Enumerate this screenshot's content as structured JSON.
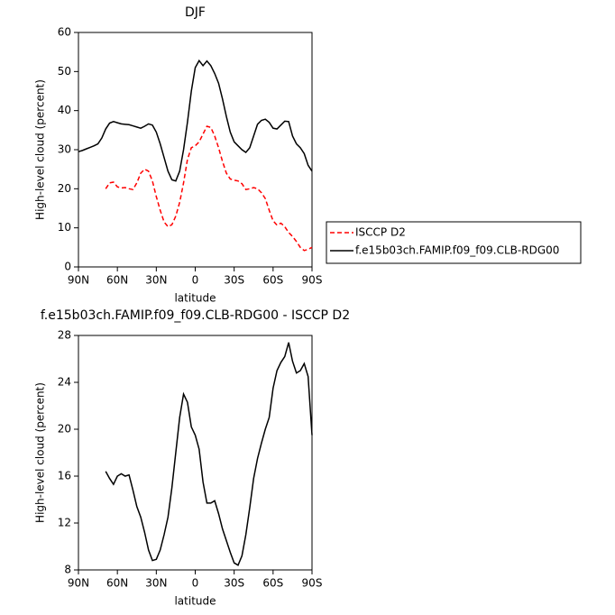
{
  "chart_data": [
    {
      "type": "line",
      "title": "DJF",
      "xlabel": "latitude",
      "ylabel": "High-level cloud (percent)",
      "x": [
        90,
        87,
        84,
        81,
        78,
        75,
        72,
        69,
        66,
        63,
        60,
        57,
        54,
        51,
        48,
        45,
        42,
        39,
        36,
        33,
        30,
        27,
        24,
        21,
        18,
        15,
        12,
        9,
        6,
        3,
        0,
        -3,
        -6,
        -9,
        -12,
        -15,
        -18,
        -21,
        -24,
        -27,
        -30,
        -33,
        -36,
        -39,
        -42,
        -45,
        -48,
        -51,
        -54,
        -57,
        -60,
        -63,
        -66,
        -69,
        -72,
        -75,
        -78,
        -81,
        -84,
        -87,
        -90
      ],
      "xlim": [
        90,
        -90
      ],
      "xticks": [
        {
          "value": 90,
          "label": "90N"
        },
        {
          "value": 60,
          "label": "60N"
        },
        {
          "value": 30,
          "label": "30N"
        },
        0,
        {
          "value": -30,
          "label": "30S"
        },
        {
          "value": -60,
          "label": "60S"
        },
        {
          "value": -90,
          "label": "90S"
        }
      ],
      "ylim": [
        0,
        60
      ],
      "yticks": [
        0,
        10,
        20,
        30,
        40,
        50,
        60
      ],
      "legend": "right",
      "series": [
        {
          "name": "ISCCP D2",
          "color": "#ff0000",
          "dashed": true,
          "values": [
            null,
            null,
            null,
            null,
            null,
            null,
            null,
            20,
            21.5,
            21.7,
            20.5,
            20.2,
            20.3,
            20,
            19.8,
            21.5,
            24,
            25,
            24.5,
            22,
            18,
            14.5,
            11.5,
            10.3,
            10.8,
            13,
            16.5,
            21.5,
            27.5,
            30.5,
            31,
            32,
            34,
            36,
            35.7,
            33.5,
            30.5,
            27,
            24,
            22.5,
            22.2,
            22,
            21.3,
            19.8,
            20,
            20.3,
            20,
            19,
            17.5,
            14.5,
            11.8,
            10.7,
            11.2,
            10.3,
            8.8,
            7.8,
            6.5,
            5,
            4.2,
            4.5,
            5
          ]
        },
        {
          "name": "f.e15b03ch.FAMIP.f09_f09.CLB-RDG00",
          "color": "#000000",
          "dashed": false,
          "values": [
            29.5,
            29.8,
            30.2,
            30.6,
            31,
            31.5,
            33,
            35.3,
            36.8,
            37.2,
            36.9,
            36.6,
            36.5,
            36.4,
            36.1,
            35.8,
            35.5,
            36,
            36.6,
            36.3,
            34.5,
            31.5,
            28,
            24.5,
            22.3,
            22,
            24.5,
            30,
            37,
            45,
            51,
            52.8,
            51.5,
            52.7,
            51.5,
            49.5,
            47,
            43,
            38.5,
            34.5,
            32,
            31,
            30,
            29.3,
            30.5,
            33.5,
            36.5,
            37.5,
            37.8,
            37,
            35.5,
            35.3,
            36.3,
            37.3,
            37.2,
            33.5,
            31.5,
            30.5,
            29,
            26,
            24.5
          ]
        }
      ]
    },
    {
      "type": "line",
      "title": "f.e15b03ch.FAMIP.f09_f09.CLB-RDG00 - ISCCP D2",
      "xlabel": "latitude",
      "ylabel": "High-level cloud (percent)",
      "x": [
        69,
        66,
        63,
        60,
        57,
        54,
        51,
        48,
        45,
        42,
        39,
        36,
        33,
        30,
        27,
        24,
        21,
        18,
        15,
        12,
        9,
        6,
        3,
        0,
        -3,
        -6,
        -9,
        -12,
        -15,
        -18,
        -21,
        -24,
        -27,
        -30,
        -33,
        -36,
        -39,
        -42,
        -45,
        -48,
        -51,
        -54,
        -57,
        -60,
        -63,
        -66,
        -69,
        -72,
        -75,
        -78,
        -81,
        -84,
        -87,
        -90
      ],
      "xlim": [
        90,
        -90
      ],
      "xticks": [
        {
          "value": 90,
          "label": "90N"
        },
        {
          "value": 60,
          "label": "60N"
        },
        {
          "value": 30,
          "label": "30N"
        },
        0,
        {
          "value": -30,
          "label": "30S"
        },
        {
          "value": -60,
          "label": "60S"
        },
        {
          "value": -90,
          "label": "90S"
        }
      ],
      "ylim": [
        8,
        28
      ],
      "yticks": [
        8,
        12,
        16,
        20,
        24,
        28
      ],
      "series": [
        {
          "color": "#000000",
          "dashed": false,
          "values": [
            16.4,
            15.8,
            15.3,
            16,
            16.2,
            16,
            16.1,
            14.8,
            13.4,
            12.5,
            11.2,
            9.7,
            8.8,
            8.9,
            9.7,
            11,
            12.5,
            15,
            18,
            21,
            23,
            22.3,
            20.2,
            19.5,
            18.3,
            15.5,
            13.7,
            13.7,
            13.9,
            12.8,
            11.5,
            10.5,
            9.5,
            8.6,
            8.4,
            9.2,
            11,
            13.3,
            15.8,
            17.5,
            18.8,
            20,
            21,
            23.5,
            25,
            25.7,
            26.2,
            27.4,
            25.8,
            24.8,
            25,
            25.6,
            24.5,
            19.5
          ]
        }
      ]
    }
  ]
}
